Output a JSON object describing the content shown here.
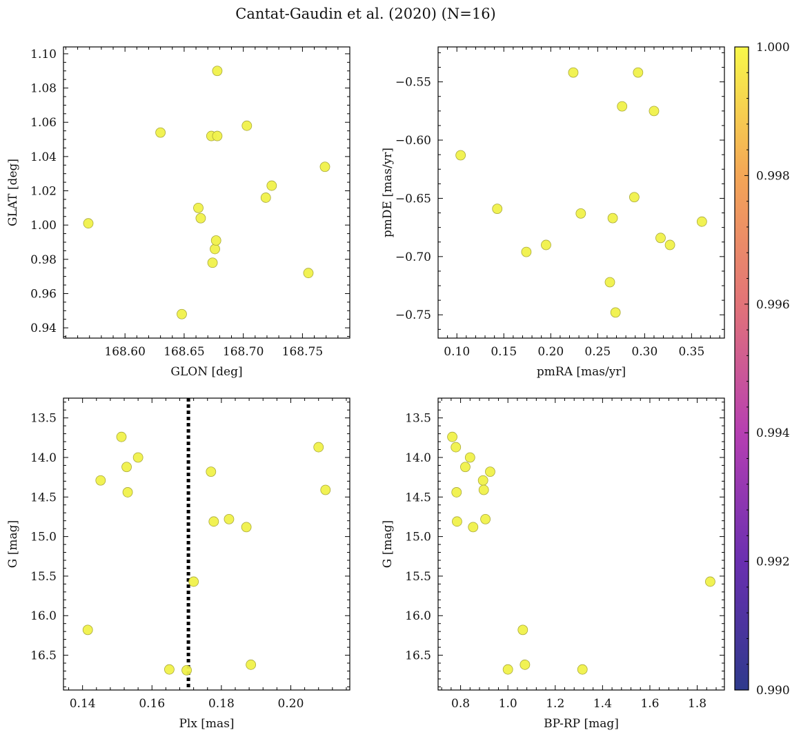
{
  "figure": {
    "title": "Cantat-Gaudin et al. (2020) (N=16)",
    "marker_color": "#f0f14a",
    "marker_edge": "#a8a83a",
    "vline_color": "#000000"
  },
  "colorbar": {
    "min": 0.99,
    "max": 1.0,
    "ticks": [
      "0.990",
      "0.992",
      "0.994",
      "0.996",
      "0.998",
      "1.000"
    ],
    "colormap": [
      "#2e3a8c",
      "#6a2fb0",
      "#b63fb2",
      "#e27378",
      "#f4a656",
      "#f8f84a"
    ]
  },
  "chart_data": [
    {
      "type": "scatter",
      "id": "glon_glat",
      "xlabel": "GLON [deg]",
      "ylabel": "GLAT [deg]",
      "xlim": [
        168.548,
        168.79
      ],
      "ylim": [
        0.934,
        1.104
      ],
      "y_inverted": false,
      "xticks": [
        "168.60",
        "168.65",
        "168.70",
        "168.75"
      ],
      "yticks": [
        "0.94",
        "0.96",
        "0.98",
        "1.00",
        "1.02",
        "1.04",
        "1.06",
        "1.08",
        "1.10"
      ],
      "x": [
        168.569,
        168.63,
        168.648,
        168.662,
        168.664,
        168.673,
        168.674,
        168.676,
        168.677,
        168.678,
        168.678,
        168.703,
        168.719,
        168.724,
        168.755,
        168.769
      ],
      "y": [
        1.001,
        1.054,
        0.948,
        1.01,
        1.004,
        1.052,
        0.978,
        0.986,
        0.991,
        1.09,
        1.052,
        1.058,
        1.016,
        1.023,
        0.972,
        1.034
      ]
    },
    {
      "type": "scatter",
      "id": "pm",
      "xlabel": "pmRA [mas/yr]",
      "ylabel": "pmDE [mas/yr]",
      "xlim": [
        0.08,
        0.385
      ],
      "ylim": [
        -0.77,
        -0.52
      ],
      "y_inverted": false,
      "xticks": [
        "0.10",
        "0.15",
        "0.20",
        "0.25",
        "0.30",
        "0.35"
      ],
      "yticks": [
        "−0.55",
        "−0.60",
        "−0.65",
        "−0.70",
        "−0.75"
      ],
      "x": [
        0.104,
        0.143,
        0.174,
        0.195,
        0.224,
        0.232,
        0.263,
        0.266,
        0.269,
        0.276,
        0.289,
        0.293,
        0.31,
        0.317,
        0.327,
        0.361
      ],
      "y": [
        -0.613,
        -0.659,
        -0.696,
        -0.69,
        -0.542,
        -0.663,
        -0.722,
        -0.667,
        -0.748,
        -0.571,
        -0.649,
        -0.542,
        -0.575,
        -0.684,
        -0.69,
        -0.67
      ]
    },
    {
      "type": "scatter",
      "id": "plx_g",
      "xlabel": "Plx [mas]",
      "ylabel": "G [mag]",
      "xlim": [
        0.1345,
        0.217
      ],
      "ylim": [
        13.25,
        16.94
      ],
      "y_inverted": true,
      "xticks": [
        "0.14",
        "0.16",
        "0.18",
        "0.20"
      ],
      "yticks": [
        "13.5",
        "14.0",
        "14.5",
        "15.0",
        "15.5",
        "16.0",
        "16.5"
      ],
      "vline_x": 0.1705,
      "x": [
        0.1415,
        0.1452,
        0.1512,
        0.1527,
        0.153,
        0.156,
        0.165,
        0.17,
        0.172,
        0.177,
        0.1778,
        0.1822,
        0.1872,
        0.1885,
        0.208,
        0.21
      ],
      "y": [
        16.18,
        14.29,
        13.74,
        14.12,
        14.44,
        14.0,
        16.68,
        16.69,
        15.57,
        14.18,
        14.81,
        14.78,
        14.88,
        16.62,
        13.87,
        14.41
      ]
    },
    {
      "type": "scatter",
      "id": "bprp_g",
      "xlabel": "BP-RP [mag]",
      "ylabel": "G [mag]",
      "xlim": [
        0.705,
        1.915
      ],
      "ylim": [
        13.25,
        16.94
      ],
      "y_inverted": true,
      "xticks": [
        "0.8",
        "1.0",
        "1.2",
        "1.4",
        "1.6",
        "1.8"
      ],
      "yticks": [
        "13.5",
        "14.0",
        "14.5",
        "15.0",
        "15.5",
        "16.0",
        "16.5"
      ],
      "x": [
        0.765,
        0.78,
        0.783,
        0.785,
        0.82,
        0.84,
        0.853,
        0.895,
        0.898,
        0.905,
        0.925,
        1.0,
        1.063,
        1.072,
        1.315,
        1.855
      ],
      "y": [
        13.74,
        13.87,
        14.44,
        14.81,
        14.12,
        14.0,
        14.88,
        14.29,
        14.41,
        14.78,
        14.18,
        16.68,
        16.18,
        16.62,
        16.68,
        15.57
      ]
    }
  ]
}
